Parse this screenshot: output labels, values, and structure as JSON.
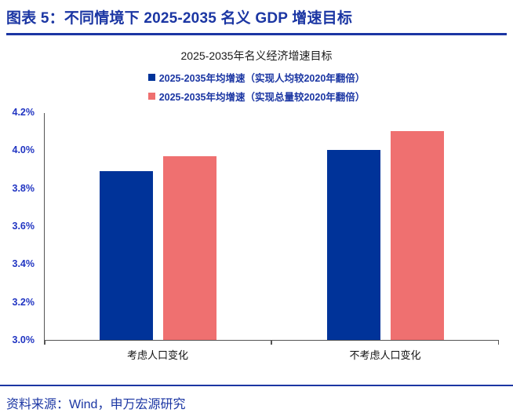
{
  "header": {
    "title": "图表 5：不同情境下 2025-2035 名义 GDP 增速目标"
  },
  "footer": {
    "source": "资料来源：Wind，申万宏源研究"
  },
  "colors": {
    "accent_navy": "#1b36a3",
    "bar_blue": "#003399",
    "bar_red": "#ef7070",
    "axis_label_blue": "#2135c2"
  },
  "chart_data": {
    "type": "bar",
    "title": "2025-2035年名义经济增速目标",
    "categories": [
      "考虑人口变化",
      "不考虑人口变化"
    ],
    "series": [
      {
        "name": "2025-2035年均增速（实现人均较2020年翻倍）",
        "color": "#003399",
        "values": [
          3.89,
          4.0
        ]
      },
      {
        "name": "2025-2035年均增速（实现总量较2020年翻倍）",
        "color": "#ef7070",
        "values": [
          3.97,
          4.1
        ]
      }
    ],
    "ylabel": "",
    "xlabel": "",
    "ylim": [
      3.0,
      4.2
    ],
    "yticks": [
      "3.0%",
      "3.2%",
      "3.4%",
      "3.6%",
      "3.8%",
      "4.0%",
      "4.2%"
    ],
    "legend_position": "top",
    "grid": false
  }
}
